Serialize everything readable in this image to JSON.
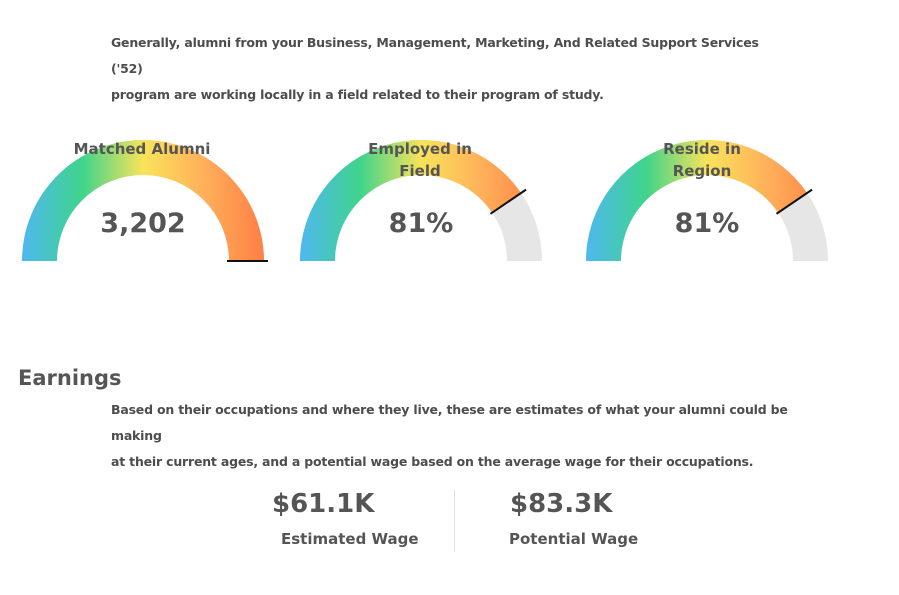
{
  "intro": {
    "line1": "Generally, alumni from your Business, Management, Marketing, And Related Support Services ('52)",
    "line2": "program are working locally in a field related to their program of study."
  },
  "gauges": [
    {
      "value": "3,202",
      "label_line1": "Matched Alumni",
      "label_line2": "",
      "fill_fraction": 1.0
    },
    {
      "value": "81%",
      "label_line1": "Employed in",
      "label_line2": "Field",
      "fill_fraction": 0.81
    },
    {
      "value": "81%",
      "label_line1": "Reside in",
      "label_line2": "Region",
      "fill_fraction": 0.81
    }
  ],
  "gauge_colors": {
    "track": "#e6e6e6",
    "gradient": [
      "#4fb8f0",
      "#3fd48a",
      "#f9e35a",
      "#ffb05a",
      "#ff7f45"
    ],
    "needle": "#111111"
  },
  "earnings": {
    "title": "Earnings",
    "desc_line1": "Based on their occupations and where they live, these are estimates of what your alumni could be making",
    "desc_line2": "at their current ages, and a potential wage based on the average wage for their occupations.",
    "estimated": {
      "value": "$61.1K",
      "label": "Estimated Wage"
    },
    "potential": {
      "value": "$83.3K",
      "label": "Potential Wage"
    }
  }
}
